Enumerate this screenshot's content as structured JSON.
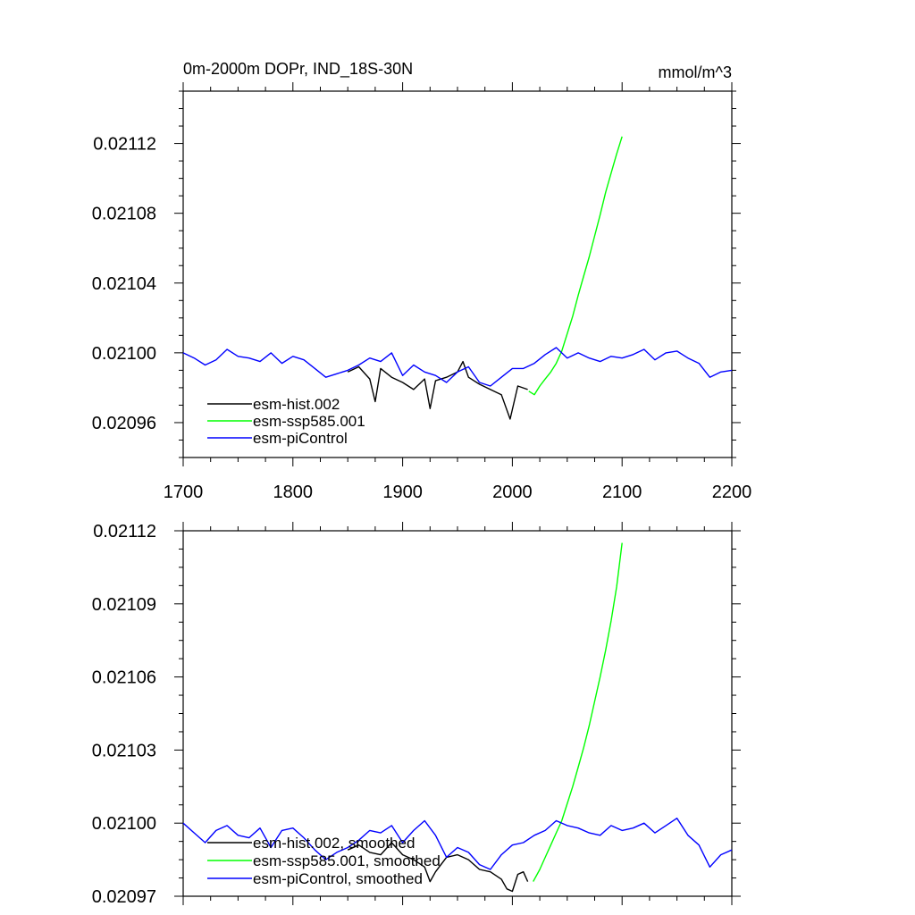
{
  "chart_data": [
    {
      "type": "line",
      "title": "0m-2000m DOPr, IND_18S-30N",
      "units": "mmol/m^3",
      "xlim": [
        1700,
        2200
      ],
      "ylim": [
        0.02094,
        0.02115
      ],
      "xticks": [
        1700,
        1800,
        1900,
        2000,
        2100,
        2200
      ],
      "xtick_labels": [
        "1700",
        "1800",
        "1900",
        "2000",
        "2100",
        "2200"
      ],
      "yticks": [
        0.02096,
        0.021,
        0.02104,
        0.02108,
        0.02112
      ],
      "ytick_labels": [
        "0.02096",
        "0.02100",
        "0.02104",
        "0.02108",
        "0.02112"
      ],
      "legend_position": "bottom-left",
      "series": [
        {
          "name": "esm-hist.002",
          "color": "#000000",
          "x": [
            1850,
            1860,
            1870,
            1875,
            1880,
            1890,
            1900,
            1910,
            1920,
            1925,
            1930,
            1940,
            1950,
            1955,
            1960,
            1970,
            1980,
            1990,
            1998,
            2005,
            2014
          ],
          "y": [
            0.020989,
            0.020992,
            0.020985,
            0.020972,
            0.020991,
            0.020986,
            0.020983,
            0.020979,
            0.020985,
            0.020968,
            0.020984,
            0.020986,
            0.020989,
            0.020995,
            0.020986,
            0.020982,
            0.020979,
            0.020976,
            0.020962,
            0.020981,
            0.020979
          ]
        },
        {
          "name": "esm-ssp585.001",
          "color": "#00ff00",
          "x": [
            2015,
            2020,
            2025,
            2030,
            2035,
            2040,
            2045,
            2050,
            2055,
            2060,
            2065,
            2070,
            2075,
            2080,
            2085,
            2090,
            2095,
            2100
          ],
          "y": [
            0.020978,
            0.020976,
            0.020981,
            0.020985,
            0.020989,
            0.020994,
            0.021001,
            0.021011,
            0.021021,
            0.021033,
            0.021044,
            0.021055,
            0.021067,
            0.021079,
            0.021092,
            0.021103,
            0.021114,
            0.021124
          ]
        },
        {
          "name": "esm-piControl",
          "color": "#0000ff",
          "x": [
            1700,
            1710,
            1720,
            1730,
            1740,
            1750,
            1760,
            1770,
            1780,
            1790,
            1800,
            1810,
            1820,
            1830,
            1840,
            1850,
            1860,
            1870,
            1880,
            1890,
            1900,
            1910,
            1920,
            1930,
            1940,
            1950,
            1960,
            1970,
            1980,
            1990,
            2000,
            2010,
            2020,
            2030,
            2040,
            2050,
            2060,
            2070,
            2080,
            2090,
            2100,
            2110,
            2120,
            2130,
            2140,
            2150,
            2160,
            2170,
            2180,
            2190,
            2200
          ],
          "y": [
            0.021,
            0.020997,
            0.020993,
            0.020996,
            0.021002,
            0.020998,
            0.020997,
            0.020995,
            0.021,
            0.020994,
            0.020998,
            0.020996,
            0.020991,
            0.020986,
            0.020988,
            0.02099,
            0.020993,
            0.020997,
            0.020995,
            0.021,
            0.020987,
            0.020993,
            0.020989,
            0.020987,
            0.020983,
            0.020989,
            0.020992,
            0.020983,
            0.020981,
            0.020986,
            0.020991,
            0.020991,
            0.020994,
            0.020999,
            0.021003,
            0.020997,
            0.021,
            0.020997,
            0.020995,
            0.020998,
            0.020997,
            0.020999,
            0.021002,
            0.020996,
            0.021,
            0.021001,
            0.020997,
            0.020994,
            0.020986,
            0.020989,
            0.02099
          ]
        }
      ]
    },
    {
      "type": "line",
      "xlim": [
        1700,
        2200
      ],
      "ylim": [
        0.02097,
        0.02112
      ],
      "xticks": [
        1700,
        1800,
        1900,
        2000,
        2100,
        2200
      ],
      "yticks": [
        0.02097,
        0.021,
        0.02103,
        0.02106,
        0.02109,
        0.02112
      ],
      "ytick_labels": [
        "0.02097",
        "0.02100",
        "0.02103",
        "0.02106",
        "0.02109",
        "0.02112"
      ],
      "legend_position": "bottom-left",
      "series": [
        {
          "name": "esm-hist.002, smoothed",
          "color": "#000000",
          "x": [
            1850,
            1860,
            1870,
            1880,
            1890,
            1900,
            1910,
            1920,
            1925,
            1930,
            1940,
            1950,
            1960,
            1970,
            1980,
            1990,
            1995,
            2000,
            2005,
            2010,
            2014
          ],
          "y": [
            0.020989,
            0.020991,
            0.020988,
            0.020987,
            0.020992,
            0.020987,
            0.020985,
            0.020982,
            0.020976,
            0.02098,
            0.020986,
            0.020987,
            0.020985,
            0.020981,
            0.02098,
            0.020977,
            0.020973,
            0.020972,
            0.020979,
            0.02098,
            0.020976
          ]
        },
        {
          "name": "esm-ssp585.001, smoothed",
          "color": "#00ff00",
          "x": [
            2019,
            2025,
            2030,
            2035,
            2040,
            2045,
            2050,
            2055,
            2060,
            2065,
            2070,
            2075,
            2080,
            2085,
            2090,
            2095,
            2100
          ],
          "y": [
            0.020976,
            0.020981,
            0.020986,
            0.020991,
            0.020996,
            0.021001,
            0.021008,
            0.021015,
            0.021023,
            0.021031,
            0.02104,
            0.02105,
            0.02106,
            0.021071,
            0.021083,
            0.021097,
            0.021115
          ]
        },
        {
          "name": "esm-piControl, smoothed",
          "color": "#0000ff",
          "x": [
            1700,
            1710,
            1720,
            1730,
            1740,
            1750,
            1760,
            1770,
            1780,
            1790,
            1800,
            1810,
            1820,
            1830,
            1840,
            1850,
            1860,
            1870,
            1880,
            1890,
            1900,
            1910,
            1920,
            1930,
            1940,
            1950,
            1960,
            1970,
            1980,
            1990,
            2000,
            2010,
            2020,
            2030,
            2040,
            2050,
            2060,
            2070,
            2080,
            2090,
            2100,
            2110,
            2120,
            2130,
            2140,
            2150,
            2160,
            2170,
            2180,
            2190,
            2200
          ],
          "y": [
            0.021,
            0.020996,
            0.020992,
            0.020997,
            0.020999,
            0.020995,
            0.020994,
            0.020998,
            0.02099,
            0.020997,
            0.020998,
            0.020994,
            0.020989,
            0.020985,
            0.020988,
            0.02099,
            0.020993,
            0.020997,
            0.020996,
            0.020999,
            0.020992,
            0.020997,
            0.021001,
            0.020995,
            0.020986,
            0.02099,
            0.020988,
            0.020983,
            0.020981,
            0.020987,
            0.020991,
            0.020992,
            0.020995,
            0.020997,
            0.021001,
            0.020999,
            0.020998,
            0.020996,
            0.020995,
            0.020999,
            0.020997,
            0.020998,
            0.021,
            0.020996,
            0.020999,
            0.021002,
            0.020995,
            0.020991,
            0.020982,
            0.020987,
            0.020989
          ]
        }
      ]
    }
  ]
}
